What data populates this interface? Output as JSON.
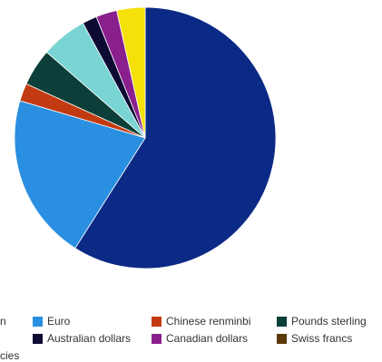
{
  "chart_data": {
    "type": "pie",
    "title": "",
    "start_angle_deg": 0,
    "slices": [
      {
        "name": "",
        "value": 59.0,
        "color": "#0b2a86"
      },
      {
        "name": "Euro",
        "value": 20.6,
        "color": "#2a8fe0"
      },
      {
        "name": "Chinese renminbi",
        "value": 2.2,
        "color": "#c23a12"
      },
      {
        "name": "Pounds sterling",
        "value": 4.6,
        "color": "#0c3f39"
      },
      {
        "name": "",
        "value": 5.7,
        "color": "#7ad4d4"
      },
      {
        "name": "Australian dollars",
        "value": 1.8,
        "color": "#0d0a33"
      },
      {
        "name": "Canadian dollars",
        "value": 2.6,
        "color": "#8a1f8e"
      },
      {
        "name": "",
        "value": 3.5,
        "color": "#f5e10a"
      }
    ],
    "legend": [
      {
        "label": "Euro",
        "color": "#2a8fe0"
      },
      {
        "label": "Chinese renminbi",
        "color": "#c23a12"
      },
      {
        "label": "Pounds sterling",
        "color": "#0c3f39"
      },
      {
        "label": "Australian dollars",
        "color": "#0d0a33"
      },
      {
        "label": "Canadian dollars",
        "color": "#8a1f8e"
      },
      {
        "label": "Swiss francs",
        "color": "#5a3a08"
      }
    ],
    "cut_off_text": [
      "n",
      "cies"
    ],
    "legend_placement": "bottom"
  }
}
